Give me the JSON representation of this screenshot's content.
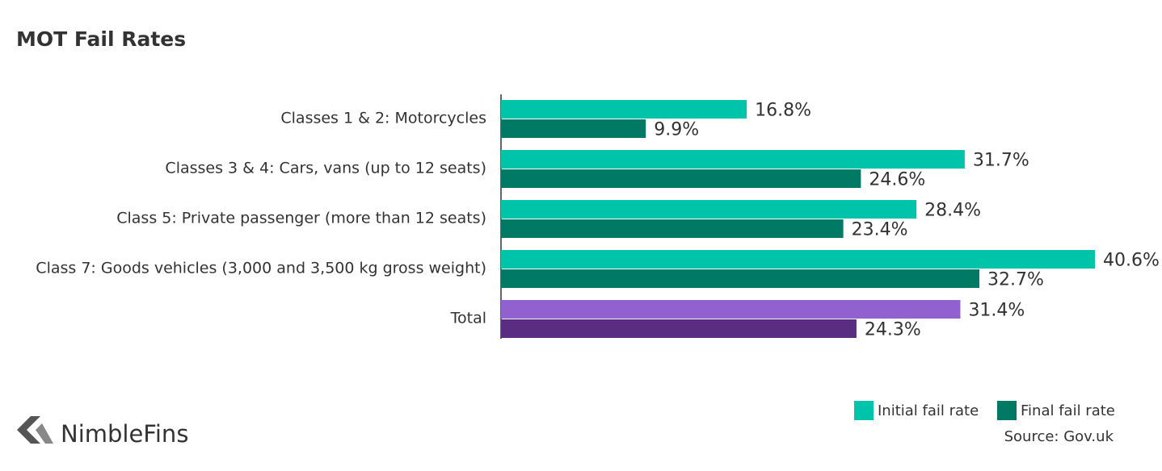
{
  "chart_data": {
    "type": "hbar",
    "title": "MOT Fail Rates",
    "categories": [
      "Classes 1 & 2: Motorcycles",
      "Classes 3 & 4: Cars, vans (up to 12 seats)",
      "Class 5: Private passenger (more than 12 seats)",
      "Class 7: Goods vehicles (3,000 and 3,500 kg gross weight)",
      "Total"
    ],
    "series": [
      {
        "name": "Initial fail rate",
        "color": "#00c4aa",
        "colors": [
          "#00c4aa",
          "#00c4aa",
          "#00c4aa",
          "#00c4aa",
          "#9162cf"
        ],
        "values": [
          16.8,
          31.7,
          28.4,
          40.6,
          31.4
        ],
        "value_labels": [
          "16.8%",
          "31.7%",
          "28.4%",
          "40.6%",
          "31.4%"
        ]
      },
      {
        "name": "Final fail rate",
        "color": "#007a64",
        "colors": [
          "#007a64",
          "#007a64",
          "#007a64",
          "#007a64",
          "#5a2d82"
        ],
        "values": [
          9.9,
          24.6,
          23.4,
          32.7,
          24.3
        ],
        "value_labels": [
          "9.9%",
          "24.6%",
          "23.4%",
          "32.7%",
          "24.3%"
        ]
      }
    ],
    "legend": "bottom-right",
    "source": "Source: Gov.uk",
    "brand": "NimbleFins"
  }
}
